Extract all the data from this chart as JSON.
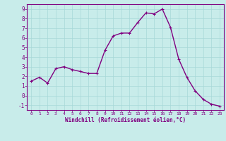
{
  "x": [
    0,
    1,
    2,
    3,
    4,
    5,
    6,
    7,
    8,
    9,
    10,
    11,
    12,
    13,
    14,
    15,
    16,
    17,
    18,
    19,
    20,
    21,
    22,
    23
  ],
  "y": [
    1.5,
    1.9,
    1.3,
    2.8,
    3.0,
    2.7,
    2.5,
    2.3,
    2.3,
    4.7,
    6.2,
    6.5,
    6.5,
    7.6,
    8.6,
    8.5,
    9.0,
    7.1,
    3.8,
    1.9,
    0.5,
    -0.4,
    -0.9,
    -1.1
  ],
  "line_color": "#800080",
  "marker": "+",
  "marker_size": 3,
  "line_width": 1.0,
  "bg_color": "#c8ecea",
  "grid_color": "#a8d8d8",
  "xlabel": "Windchill (Refroidissement éolien,°C)",
  "xlabel_color": "#800080",
  "tick_color": "#800080",
  "ylim": [
    -1.5,
    9.5
  ],
  "xlim": [
    -0.5,
    23.5
  ],
  "yticks": [
    -1,
    0,
    1,
    2,
    3,
    4,
    5,
    6,
    7,
    8,
    9
  ],
  "xticks": [
    0,
    1,
    2,
    3,
    4,
    5,
    6,
    7,
    8,
    9,
    10,
    11,
    12,
    13,
    14,
    15,
    16,
    17,
    18,
    19,
    20,
    21,
    22,
    23
  ]
}
